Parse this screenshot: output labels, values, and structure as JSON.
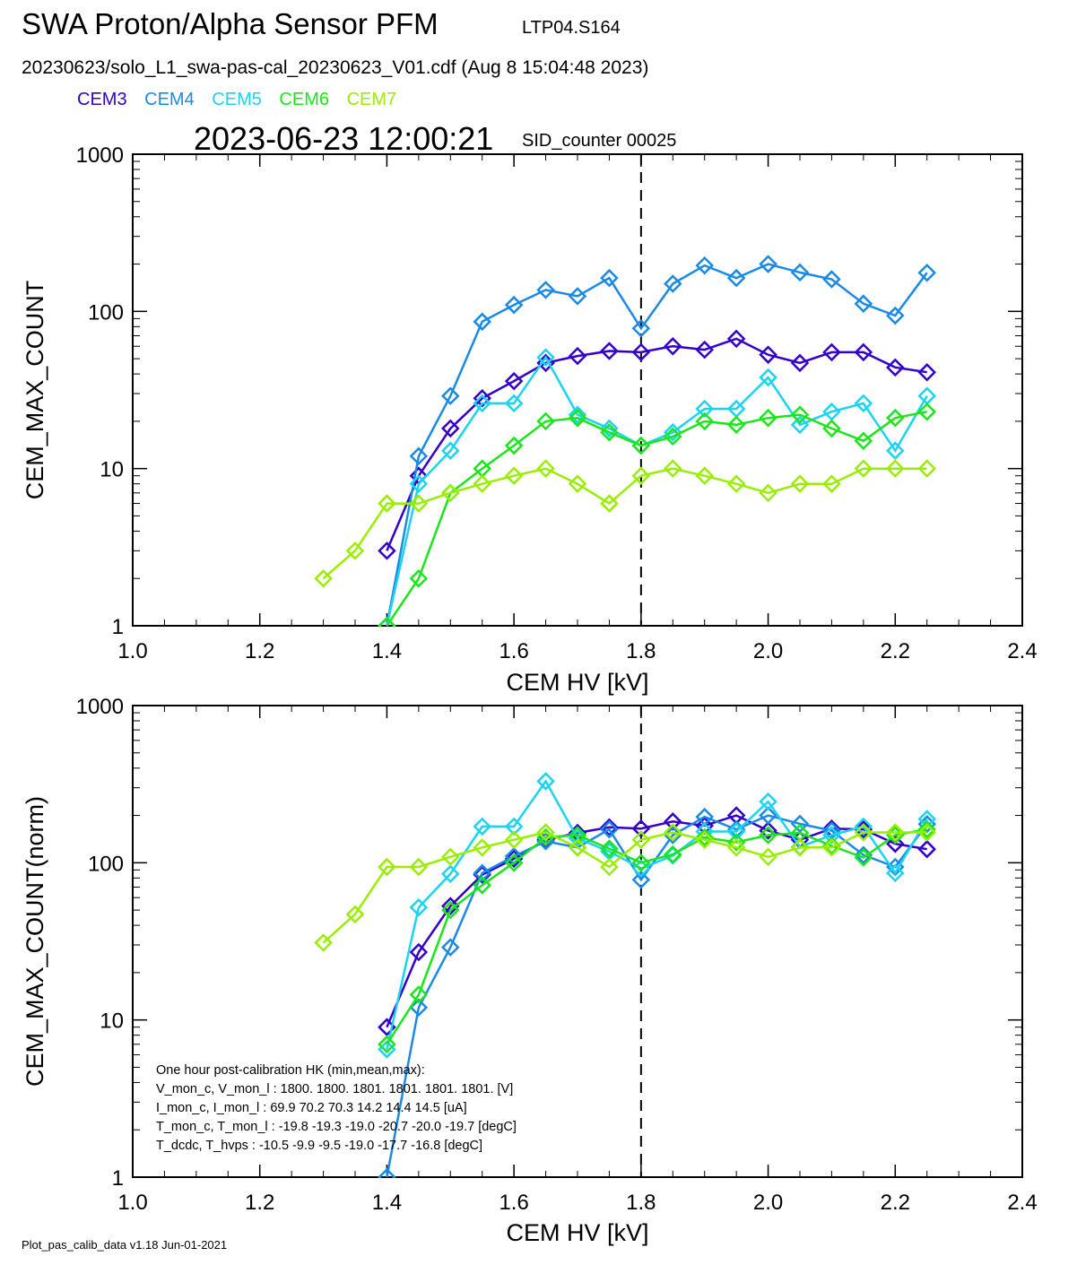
{
  "header": {
    "title": "SWA Proton/Alpha Sensor PFM",
    "run_id": "LTP04.S164",
    "file_info": "20230623/solo_L1_swa-pas-cal_20230623_V01.cdf  (Aug  8 15:04:48 2023)",
    "datetime": "2023-06-23 12:00:21",
    "sid_counter": "SID_counter 00025"
  },
  "legend": [
    {
      "label": "CEM3",
      "color": "#3300cc"
    },
    {
      "label": "CEM4",
      "color": "#1a8ae6"
    },
    {
      "label": "CEM5",
      "color": "#1ad4f0"
    },
    {
      "label": "CEM6",
      "color": "#1ae61a"
    },
    {
      "label": "CEM7",
      "color": "#99ee00"
    }
  ],
  "footer": "Plot_pas_calib_data v1.18 Jun-01-2021",
  "hk_box": {
    "lines": [
      "One hour post-calibration HK (min,mean,max):",
      "V_mon_c, V_mon_l :    1800.  1800.  1801.      1801.  1801.  1801.  [V]",
      "I_mon_c,  I_mon_l :     69.9   70.2   70.3         14.2   14.4   14.5  [uA]",
      "T_mon_c, T_mon_l :   -19.8  -19.3  -19.0       -20.7  -20.0  -19.7  [degC]",
      "T_dcdc,    T_hvps :    -10.5   -9.9   -9.5        -19.0  -17.7  -16.8  [degC]"
    ]
  },
  "chart_data": [
    {
      "type": "line",
      "xlabel": "CEM HV [kV]",
      "ylabel": "CEM_MAX_COUNT",
      "xlim": [
        1.0,
        2.4
      ],
      "ylim": [
        1,
        1000
      ],
      "yscale": "log",
      "x_ticks": [
        "1.0",
        "1.2",
        "1.4",
        "1.6",
        "1.8",
        "2.0",
        "2.2",
        "2.4"
      ],
      "y_ticks": [
        "1",
        "10",
        "100",
        "1000"
      ],
      "vline_x": 1.8,
      "marker": "diamond",
      "series": [
        {
          "name": "CEM3",
          "color": "#3300cc",
          "x": [
            1.4,
            1.45,
            1.5,
            1.55,
            1.6,
            1.65,
            1.7,
            1.75,
            1.8,
            1.85,
            1.9,
            1.95,
            2.0,
            2.05,
            2.1,
            2.15,
            2.2,
            2.25
          ],
          "y": [
            3,
            9,
            18,
            28,
            36,
            47,
            52,
            56,
            55,
            60,
            57,
            67,
            53,
            47,
            55,
            55,
            44,
            41
          ]
        },
        {
          "name": "CEM4",
          "color": "#1a8ae6",
          "x": [
            1.4,
            1.45,
            1.5,
            1.55,
            1.6,
            1.65,
            1.7,
            1.75,
            1.8,
            1.85,
            1.9,
            1.95,
            2.0,
            2.05,
            2.1,
            2.15,
            2.2,
            2.25
          ],
          "y": [
            1,
            12,
            29,
            86,
            110,
            137,
            125,
            163,
            78,
            150,
            196,
            163,
            200,
            177,
            160,
            112,
            94,
            176
          ]
        },
        {
          "name": "CEM5",
          "color": "#1ad4f0",
          "x": [
            1.4,
            1.45,
            1.5,
            1.55,
            1.6,
            1.65,
            1.7,
            1.75,
            1.8,
            1.85,
            1.9,
            1.95,
            2.0,
            2.05,
            2.1,
            2.15,
            2.2,
            2.25
          ],
          "y": [
            1,
            8,
            13,
            26,
            26,
            51,
            22,
            18,
            14,
            17,
            24,
            24,
            38,
            19,
            23,
            26,
            13,
            29
          ]
        },
        {
          "name": "CEM6",
          "color": "#1ae61a",
          "x": [
            1.4,
            1.45,
            1.5,
            1.55,
            1.6,
            1.65,
            1.7,
            1.75,
            1.8,
            1.85,
            1.9,
            1.95,
            2.0,
            2.05,
            2.1,
            2.15,
            2.2,
            2.25
          ],
          "y": [
            1,
            2,
            7,
            10,
            14,
            20,
            21,
            17,
            14,
            16,
            20,
            19,
            21,
            22,
            18,
            15,
            21,
            23
          ]
        },
        {
          "name": "CEM7",
          "color": "#99ee00",
          "x": [
            1.3,
            1.35,
            1.4,
            1.45,
            1.5,
            1.55,
            1.6,
            1.65,
            1.7,
            1.75,
            1.8,
            1.85,
            1.9,
            1.95,
            2.0,
            2.05,
            2.1,
            2.15,
            2.2,
            2.25
          ],
          "y": [
            2,
            3,
            6,
            6,
            7,
            8,
            9,
            10,
            8,
            6,
            9,
            10,
            9,
            8,
            7,
            8,
            8,
            10,
            10,
            10
          ]
        }
      ]
    },
    {
      "type": "line",
      "xlabel": "CEM HV [kV]",
      "ylabel": "CEM_MAX_COUNT(norm)",
      "xlim": [
        1.0,
        2.4
      ],
      "ylim": [
        1,
        1000
      ],
      "yscale": "log",
      "x_ticks": [
        "1.0",
        "1.2",
        "1.4",
        "1.6",
        "1.8",
        "2.0",
        "2.2",
        "2.4"
      ],
      "y_ticks": [
        "1",
        "10",
        "100",
        "1000"
      ],
      "vline_x": 1.8,
      "marker": "diamond",
      "series": [
        {
          "name": "CEM3",
          "color": "#3300cc",
          "x": [
            1.4,
            1.45,
            1.5,
            1.55,
            1.6,
            1.65,
            1.7,
            1.75,
            1.8,
            1.85,
            1.9,
            1.95,
            2.0,
            2.05,
            2.1,
            2.15,
            2.2,
            2.25
          ],
          "y": [
            9,
            27,
            53,
            84,
            106,
            140,
            155,
            168,
            165,
            183,
            172,
            200,
            160,
            140,
            165,
            163,
            132,
            122
          ]
        },
        {
          "name": "CEM4",
          "color": "#1a8ae6",
          "x": [
            1.4,
            1.45,
            1.5,
            1.55,
            1.6,
            1.65,
            1.7,
            1.75,
            1.8,
            1.85,
            1.9,
            1.95,
            2.0,
            2.05,
            2.1,
            2.15,
            2.2,
            2.25
          ],
          "y": [
            1,
            12,
            29,
            86,
            110,
            137,
            125,
            163,
            78,
            150,
            196,
            163,
            200,
            177,
            160,
            112,
            94,
            176
          ]
        },
        {
          "name": "CEM5",
          "color": "#1ad4f0",
          "x": [
            1.4,
            1.45,
            1.5,
            1.55,
            1.6,
            1.65,
            1.7,
            1.75,
            1.8,
            1.85,
            1.9,
            1.95,
            2.0,
            2.05,
            2.1,
            2.15,
            2.2,
            2.25
          ],
          "y": [
            6.5,
            52,
            85,
            170,
            170,
            330,
            143,
            118,
            92,
            111,
            158,
            158,
            245,
            126,
            150,
            170,
            86,
            190
          ]
        },
        {
          "name": "CEM6",
          "color": "#1ae61a",
          "x": [
            1.4,
            1.45,
            1.5,
            1.55,
            1.6,
            1.65,
            1.7,
            1.75,
            1.8,
            1.85,
            1.9,
            1.95,
            2.0,
            2.05,
            2.1,
            2.15,
            2.2,
            2.25
          ],
          "y": [
            7,
            14.5,
            50,
            72,
            100,
            145,
            150,
            123,
            100,
            113,
            145,
            135,
            150,
            155,
            128,
            108,
            150,
            163
          ]
        },
        {
          "name": "CEM7",
          "color": "#99ee00",
          "x": [
            1.3,
            1.35,
            1.4,
            1.45,
            1.5,
            1.55,
            1.6,
            1.65,
            1.7,
            1.75,
            1.8,
            1.85,
            1.9,
            1.95,
            2.0,
            2.05,
            2.1,
            2.15,
            2.2,
            2.25
          ],
          "y": [
            31,
            47,
            94,
            94,
            109,
            125,
            140,
            156,
            125,
            94,
            140,
            156,
            140,
            125,
            109,
            125,
            125,
            156,
            156,
            156
          ]
        }
      ]
    }
  ]
}
